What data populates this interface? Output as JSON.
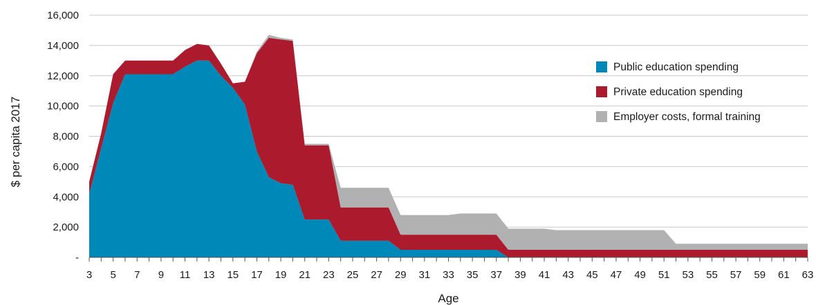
{
  "chart_data": {
    "type": "area",
    "stacked": true,
    "xlabel": "Age",
    "ylabel": "$ per capita 2017",
    "ylim": [
      0,
      16000
    ],
    "yticks": [
      0,
      2000,
      4000,
      6000,
      8000,
      10000,
      12000,
      14000,
      16000
    ],
    "ytick_labels": [
      "-",
      "2,000",
      "4,000",
      "6,000",
      "8,000",
      "10,000",
      "12,000",
      "14,000",
      "16,000"
    ],
    "xlim": [
      3,
      63
    ],
    "xtick_labels": [
      "3",
      "5",
      "7",
      "9",
      "11",
      "13",
      "15",
      "17",
      "19",
      "21",
      "23",
      "25",
      "27",
      "29",
      "31",
      "33",
      "35",
      "37",
      "39",
      "41",
      "43",
      "45",
      "47",
      "49",
      "51",
      "53",
      "55",
      "57",
      "59",
      "61",
      "63"
    ],
    "grid": "horizontal",
    "legend_position": "right",
    "x": [
      3,
      4,
      5,
      6,
      7,
      8,
      9,
      10,
      11,
      12,
      13,
      14,
      15,
      16,
      17,
      18,
      19,
      20,
      21,
      22,
      23,
      24,
      25,
      26,
      27,
      28,
      29,
      30,
      31,
      32,
      33,
      34,
      35,
      36,
      37,
      38,
      39,
      40,
      41,
      42,
      43,
      44,
      45,
      46,
      47,
      48,
      49,
      50,
      51,
      52,
      53,
      54,
      55,
      56,
      57,
      58,
      59,
      60,
      61,
      62,
      63
    ],
    "series": [
      {
        "name": "Public education spending",
        "color": "#0088b8",
        "values": [
          4200,
          7200,
          10200,
          12100,
          12100,
          12100,
          12100,
          12100,
          12600,
          13000,
          13000,
          12000,
          11200,
          10100,
          7000,
          5300,
          4900,
          4800,
          2500,
          2500,
          2500,
          1100,
          1100,
          1100,
          1100,
          1100,
          500,
          500,
          500,
          500,
          500,
          500,
          500,
          500,
          500,
          0,
          0,
          0,
          0,
          0,
          0,
          0,
          0,
          0,
          0,
          0,
          0,
          0,
          0,
          0,
          0,
          0,
          0,
          0,
          0,
          0,
          0,
          0,
          0,
          0,
          0
        ]
      },
      {
        "name": "Private education spending",
        "color": "#ab1a2d",
        "values": [
          800,
          1000,
          1900,
          900,
          900,
          900,
          900,
          900,
          1100,
          1100,
          1000,
          800,
          300,
          1500,
          6500,
          9200,
          9500,
          9500,
          4900,
          4900,
          4900,
          2200,
          2200,
          2200,
          2200,
          2200,
          1000,
          1000,
          1000,
          1000,
          1000,
          1000,
          1000,
          1000,
          1000,
          500,
          500,
          500,
          500,
          500,
          500,
          500,
          500,
          500,
          500,
          500,
          500,
          500,
          500,
          500,
          500,
          500,
          500,
          500,
          500,
          500,
          500,
          500,
          500,
          500,
          500
        ]
      },
      {
        "name": "Employer costs, formal training",
        "color": "#b1b1b1",
        "values": [
          0,
          0,
          0,
          0,
          0,
          0,
          0,
          0,
          0,
          0,
          0,
          0,
          0,
          0,
          100,
          200,
          100,
          100,
          100,
          100,
          100,
          1300,
          1300,
          1300,
          1300,
          1300,
          1300,
          1300,
          1300,
          1300,
          1300,
          1400,
          1400,
          1400,
          1400,
          1400,
          1400,
          1400,
          1400,
          1300,
          1300,
          1300,
          1300,
          1300,
          1300,
          1300,
          1300,
          1300,
          1300,
          400,
          400,
          400,
          400,
          400,
          400,
          400,
          400,
          400,
          400,
          400,
          400
        ]
      }
    ]
  }
}
